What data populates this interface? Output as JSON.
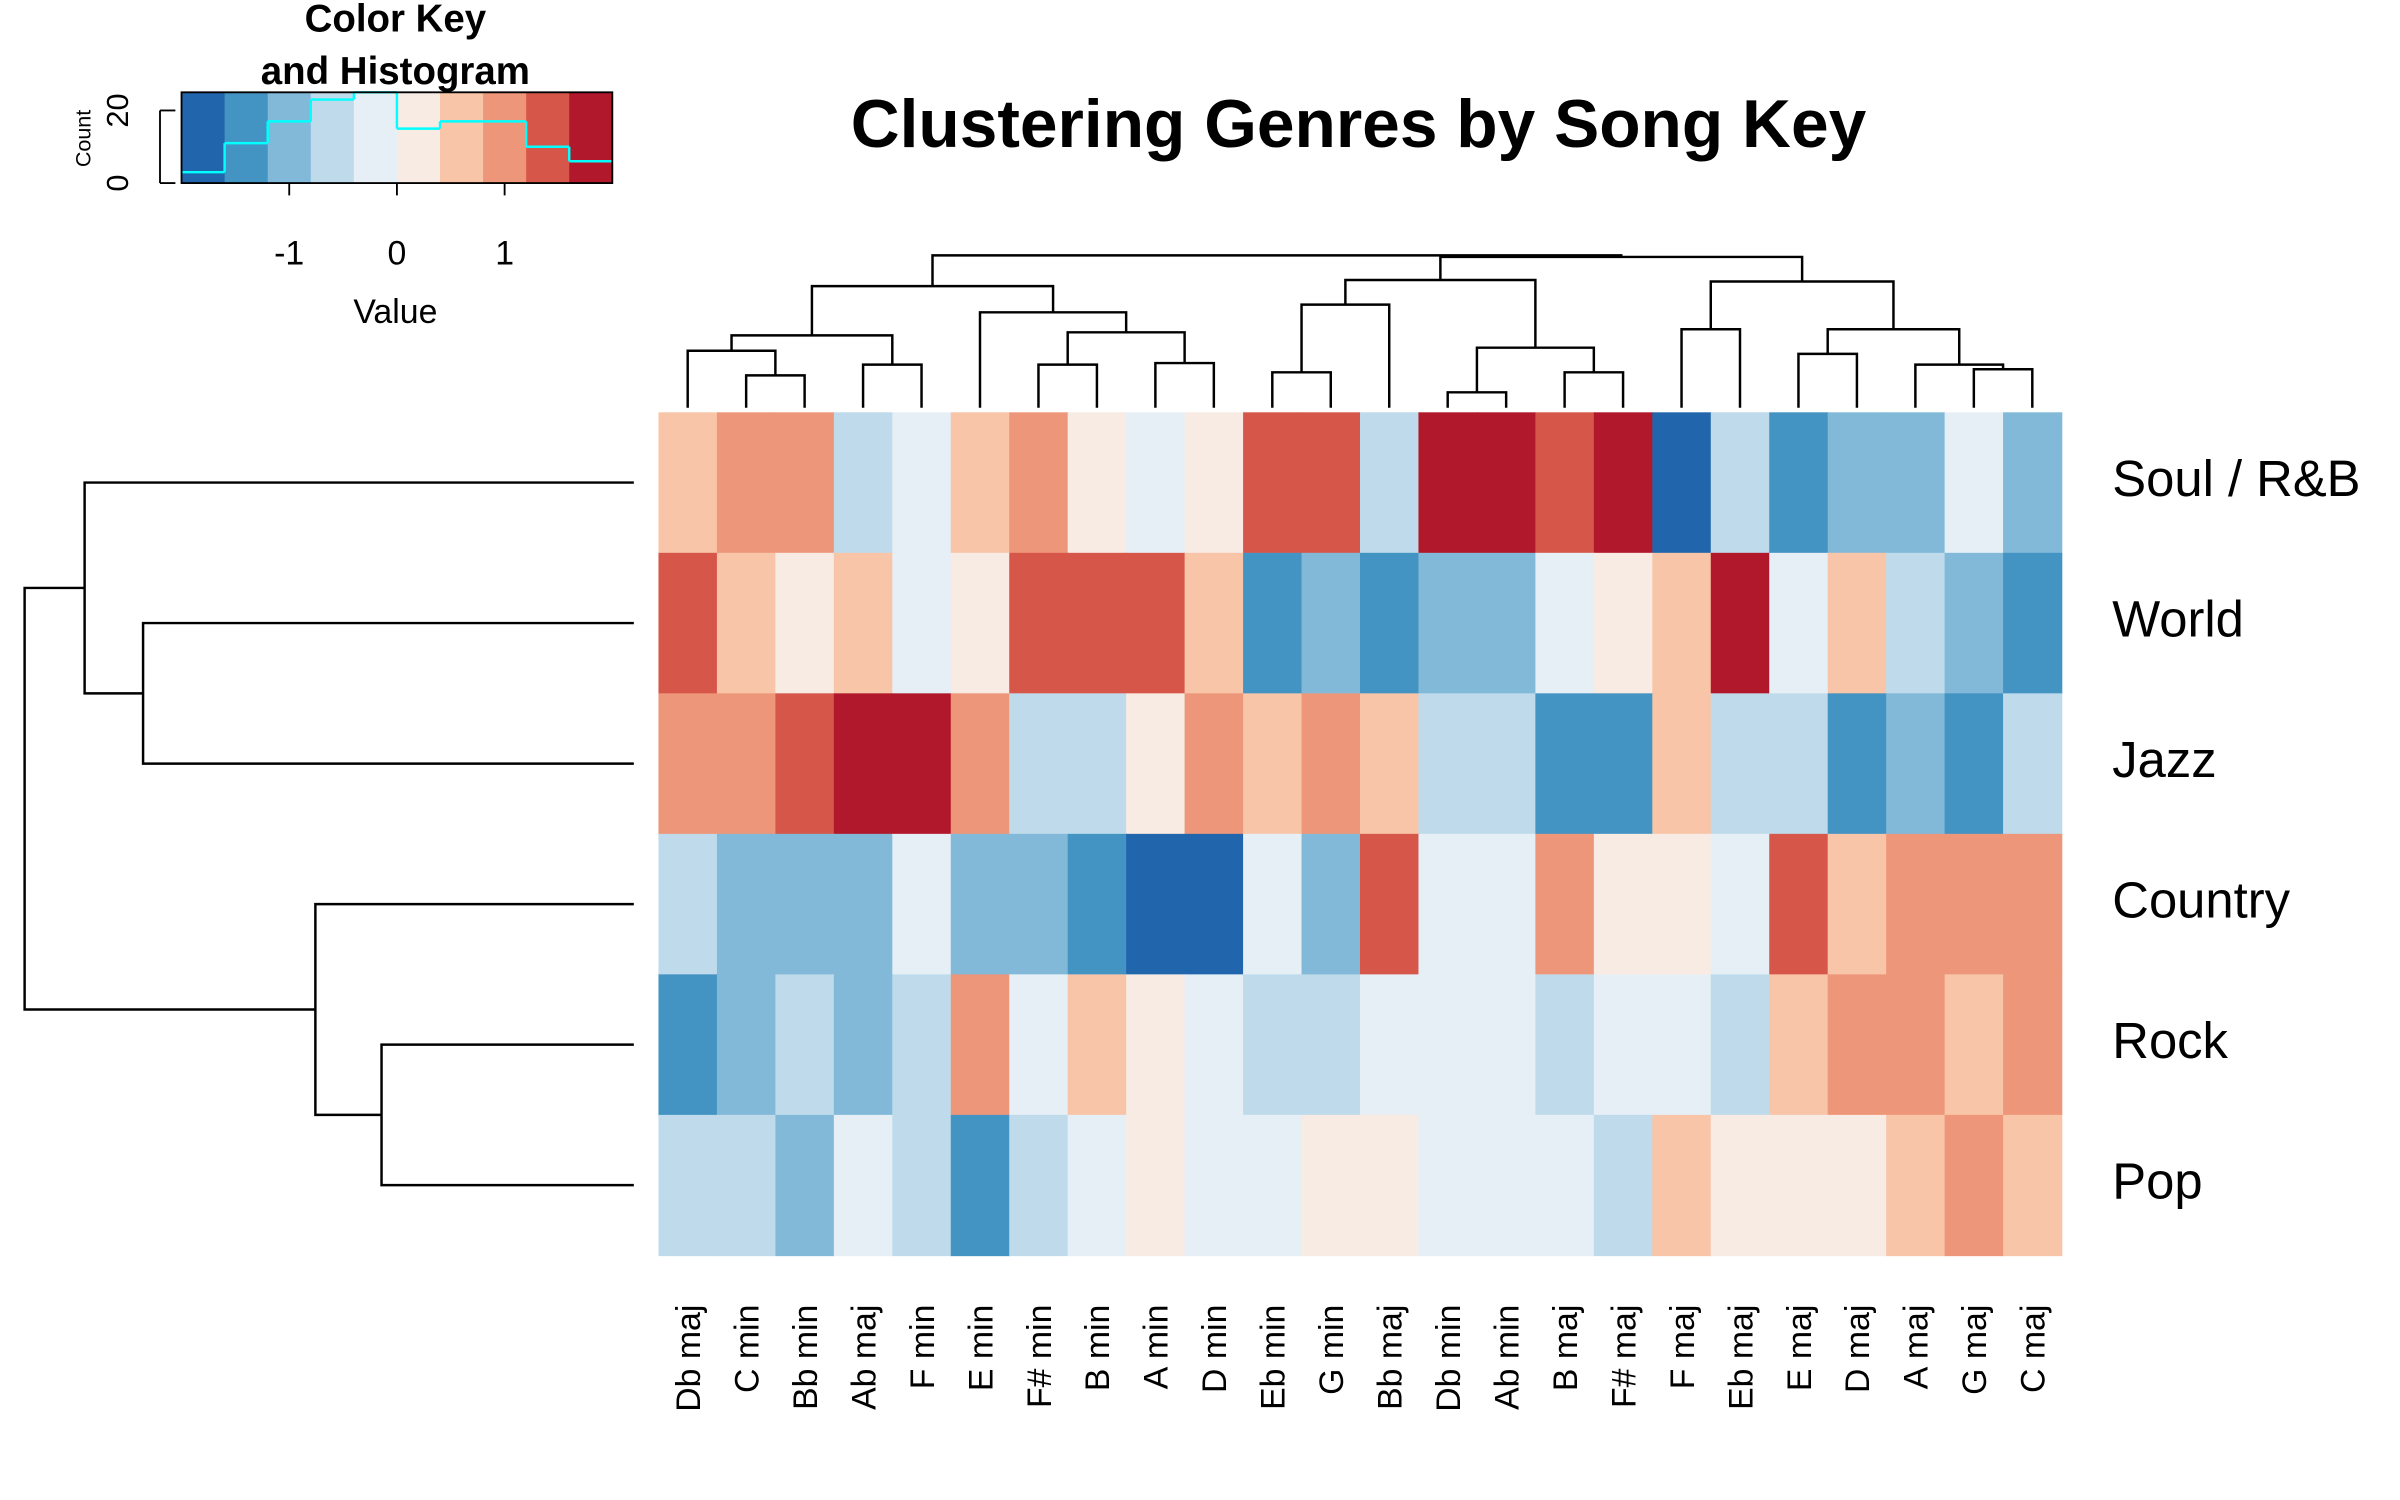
{
  "chart_data": [
    {
      "type": "heatmap",
      "title": "Clustering Genres by Song Key",
      "categories": [
        "Db maj",
        "C min",
        "Bb min",
        "Ab maj",
        "F min",
        "E min",
        "F# min",
        "B min",
        "A min",
        "D min",
        "Eb min",
        "G min",
        "Bb maj",
        "Db min",
        "Ab min",
        "B maj",
        "F# maj",
        "F maj",
        "Eb maj",
        "E maj",
        "D maj",
        "A maj",
        "G maj",
        "C maj"
      ],
      "rows": [
        "Soul / R&B",
        "World",
        "Jazz",
        "Country",
        "Rock",
        "Pop"
      ],
      "values": [
        [
          0.6,
          1.0,
          1.0,
          -0.6,
          -0.2,
          0.6,
          1.0,
          0.2,
          -0.2,
          0.2,
          1.4,
          1.4,
          -0.6,
          1.8,
          1.8,
          1.4,
          1.8,
          -1.8,
          -0.6,
          -1.4,
          -1.0,
          -1.0,
          -0.2,
          -1.0
        ],
        [
          1.4,
          0.6,
          0.2,
          0.6,
          -0.2,
          0.2,
          1.4,
          1.4,
          1.4,
          0.6,
          -1.4,
          -1.0,
          -1.4,
          -1.0,
          -1.0,
          -0.2,
          0.2,
          0.6,
          1.8,
          -0.2,
          0.6,
          -0.6,
          -1.0,
          -1.4
        ],
        [
          1.0,
          1.0,
          1.4,
          1.8,
          1.8,
          1.0,
          -0.6,
          -0.6,
          0.2,
          1.0,
          0.6,
          1.0,
          0.6,
          -0.6,
          -0.6,
          -1.4,
          -1.4,
          0.6,
          -0.6,
          -0.6,
          -1.4,
          -1.0,
          -1.4,
          -0.6
        ],
        [
          -0.6,
          -1.0,
          -1.0,
          -1.0,
          -0.2,
          -1.0,
          -1.0,
          -1.4,
          -1.8,
          -1.8,
          -0.2,
          -1.0,
          1.4,
          -0.2,
          -0.2,
          1.0,
          0.2,
          0.2,
          -0.2,
          1.4,
          0.6,
          1.0,
          1.0,
          1.0
        ],
        [
          -1.4,
          -1.0,
          -0.6,
          -1.0,
          -0.6,
          1.0,
          -0.2,
          0.6,
          0.2,
          -0.2,
          -0.6,
          -0.6,
          -0.2,
          -0.2,
          -0.2,
          -0.6,
          -0.2,
          -0.2,
          -0.6,
          0.6,
          1.0,
          1.0,
          0.6,
          1.0
        ],
        [
          -0.6,
          -0.6,
          -1.0,
          -0.2,
          -0.6,
          -1.4,
          -0.6,
          -0.2,
          0.2,
          -0.2,
          -0.2,
          0.2,
          0.2,
          -0.2,
          -0.2,
          -0.2,
          -0.6,
          0.6,
          0.2,
          0.2,
          0.2,
          0.6,
          1.0,
          0.6
        ]
      ],
      "colors": [
        "#2166ac",
        "#4393c3",
        "#82b9d9",
        "#bfdbeb",
        "#e6eff6",
        "#f8ebe4",
        "#f8c5a8",
        "#ee9679",
        "#d6574a",
        "#b2182b"
      ]
    },
    {
      "type": "histogram",
      "title": [
        "Color Key",
        "and Histogram"
      ],
      "xlabel": "Value",
      "ylabel": "Count",
      "bins": [
        -2,
        -1.6,
        -1.2,
        -0.8,
        -0.4,
        0,
        0.4,
        0.8,
        1.2,
        1.6,
        2
      ],
      "counts": [
        3,
        11,
        17,
        23,
        25,
        15,
        17,
        17,
        10,
        6
      ],
      "color": "#00ffff",
      "xlim": [
        -2,
        2
      ],
      "xticks": [
        -1,
        0,
        1
      ],
      "ylim": [
        0,
        25
      ],
      "yticks": [
        0,
        20
      ]
    }
  ]
}
